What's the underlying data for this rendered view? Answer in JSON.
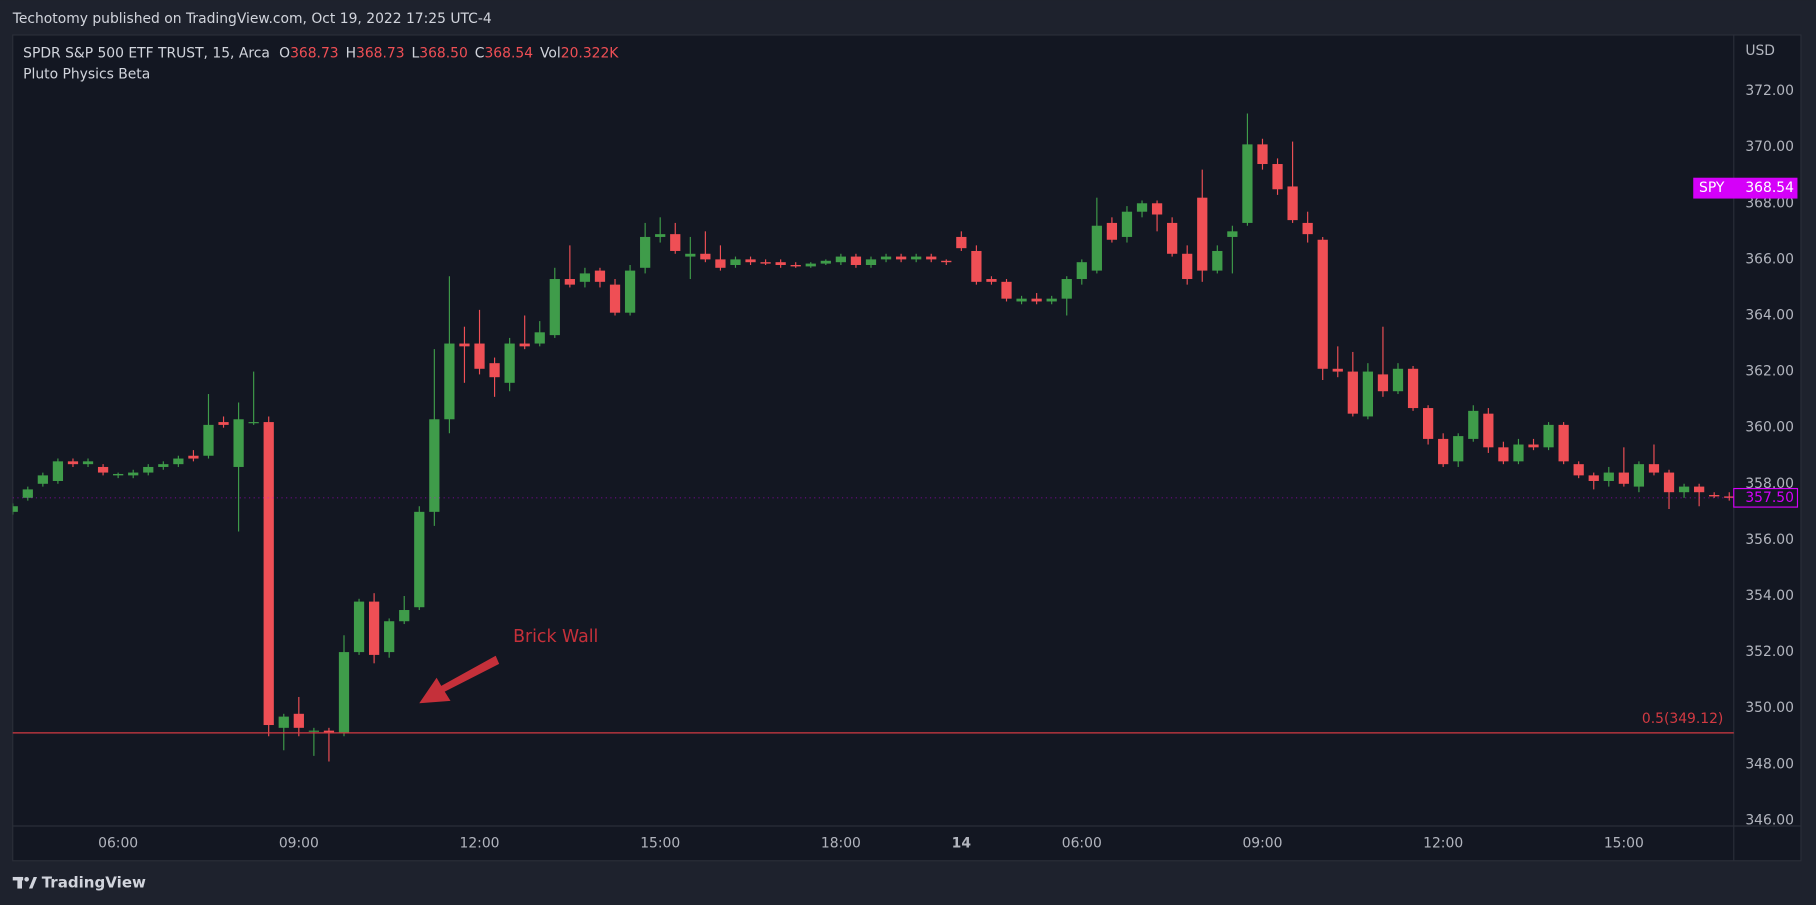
{
  "header": {
    "title": "Techotomy published on TradingView.com, Oct 19, 2022 17:25 UTC-4"
  },
  "footer": {
    "brand": "TradingView"
  },
  "chart_data": {
    "type": "candlestick",
    "symbol": "SPDR S&P 500 ETF TRUST, 15, Arca",
    "legend": [
      {
        "key": "O",
        "value": 368.73
      },
      {
        "key": "H",
        "value": 368.73
      },
      {
        "key": "L",
        "value": 368.5,
        "label": "368.50"
      },
      {
        "key": "C",
        "value": 368.54
      },
      {
        "key": "Vol",
        "value": 20322,
        "label": "20.322K"
      }
    ],
    "indicator": "Pluto Physics Beta",
    "currency": "USD",
    "up_color": "#3f9c4a",
    "down_color": "#ef4f55",
    "xlim": [
      0,
      114.3
    ],
    "xticks": [
      {
        "value": 7,
        "label": "06:00"
      },
      {
        "value": 19,
        "label": "09:00"
      },
      {
        "value": 31,
        "label": "12:00"
      },
      {
        "value": 43,
        "label": "15:00"
      },
      {
        "value": 55,
        "label": "18:00"
      },
      {
        "value": 63,
        "label": "14"
      },
      {
        "value": 71,
        "label": "06:00"
      },
      {
        "value": 83,
        "label": "09:00"
      },
      {
        "value": 95,
        "label": "12:00"
      },
      {
        "value": 107,
        "label": "15:00"
      }
    ],
    "ylim": [
      345.8,
      374.0
    ],
    "yticks": [
      {
        "value": 346,
        "label": "346.00"
      },
      {
        "value": 348,
        "label": "348.00"
      },
      {
        "value": 350,
        "label": "350.00"
      },
      {
        "value": 352,
        "label": "352.00"
      },
      {
        "value": 354,
        "label": "354.00"
      },
      {
        "value": 356,
        "label": "356.00"
      },
      {
        "value": 358,
        "label": "358.00"
      },
      {
        "value": 360,
        "label": "360.00"
      },
      {
        "value": 362,
        "label": "362.00"
      },
      {
        "value": 364,
        "label": "364.00"
      },
      {
        "value": 366,
        "label": "366.00"
      },
      {
        "value": 368,
        "label": "368.00"
      },
      {
        "value": 370,
        "label": "370.00"
      },
      {
        "value": 372,
        "label": "372.00"
      }
    ],
    "open": [
      357.0,
      357.5,
      358.0,
      358.1,
      358.8,
      358.7,
      358.6,
      358.3,
      358.3,
      358.4,
      358.6,
      358.7,
      359.0,
      359.0,
      360.2,
      358.6,
      360.2,
      360.2,
      349.3,
      349.8,
      349.2,
      349.2,
      349.1,
      352.0,
      353.8,
      352.0,
      353.1,
      353.6,
      357.0,
      360.3,
      363.0,
      363.0,
      362.3,
      361.6,
      363.0,
      363.0,
      363.3,
      365.3,
      365.2,
      365.6,
      365.1,
      364.1,
      365.7,
      366.8,
      366.9,
      366.1,
      366.2,
      366.0,
      365.8,
      366.0,
      365.9,
      365.9,
      365.8,
      365.75,
      365.85,
      365.9,
      366.1,
      365.8,
      366.0,
      366.1,
      366.0,
      366.1,
      365.95,
      366.8,
      366.3,
      365.3,
      365.2,
      364.5,
      364.6,
      364.5,
      364.6,
      365.3,
      365.6,
      367.3,
      366.8,
      367.7,
      368.0,
      367.3,
      366.2,
      368.2,
      365.6,
      366.8,
      367.3,
      370.1,
      369.4,
      368.6,
      367.3,
      366.7,
      362.1,
      362.0,
      360.4,
      361.9,
      361.3,
      362.1,
      360.7,
      359.6,
      358.8,
      359.6,
      360.5,
      359.3,
      358.8,
      359.4,
      359.3,
      360.1,
      358.7,
      358.3,
      358.1,
      358.4,
      357.9,
      358.7,
      358.4,
      357.7,
      357.9,
      357.6,
      357.55
    ],
    "high": [
      357.3,
      357.9,
      358.4,
      358.9,
      358.9,
      358.9,
      358.7,
      358.4,
      358.5,
      358.7,
      358.8,
      359.0,
      359.2,
      361.2,
      360.4,
      360.9,
      362.0,
      360.4,
      349.8,
      350.4,
      349.3,
      349.3,
      352.6,
      353.9,
      354.1,
      353.2,
      354.0,
      357.2,
      362.8,
      365.4,
      363.6,
      364.2,
      362.5,
      363.2,
      364.0,
      363.8,
      365.7,
      366.5,
      365.7,
      365.7,
      365.3,
      365.8,
      367.3,
      367.5,
      367.3,
      366.8,
      367.0,
      366.5,
      366.1,
      366.1,
      366.0,
      366.0,
      365.9,
      365.9,
      366.0,
      366.2,
      366.2,
      366.1,
      366.2,
      366.2,
      366.2,
      366.2,
      366.0,
      367.0,
      366.5,
      365.4,
      365.3,
      364.7,
      364.8,
      364.7,
      365.4,
      366.0,
      368.2,
      367.5,
      367.9,
      368.1,
      368.1,
      367.5,
      366.5,
      369.2,
      366.5,
      367.2,
      371.2,
      370.3,
      369.6,
      370.2,
      367.7,
      366.8,
      362.9,
      362.7,
      362.3,
      363.6,
      362.3,
      362.2,
      360.8,
      359.8,
      359.8,
      360.8,
      360.7,
      359.5,
      359.6,
      359.6,
      360.2,
      360.2,
      358.8,
      358.4,
      358.6,
      359.3,
      358.8,
      359.4,
      358.5,
      358.0,
      358.0,
      357.7,
      357.7
    ],
    "low": [
      356.9,
      357.4,
      357.9,
      358.0,
      358.6,
      358.6,
      358.3,
      358.2,
      358.2,
      358.3,
      358.5,
      358.6,
      358.8,
      358.9,
      360.0,
      356.3,
      360.1,
      349.0,
      348.5,
      349.0,
      348.3,
      348.1,
      349.0,
      351.9,
      351.6,
      351.8,
      353.0,
      353.5,
      356.5,
      359.8,
      361.6,
      361.9,
      361.1,
      361.3,
      362.8,
      362.9,
      363.2,
      365.0,
      365.0,
      365.0,
      364.0,
      364.0,
      365.5,
      366.6,
      366.2,
      365.3,
      365.9,
      365.6,
      365.7,
      365.8,
      365.8,
      365.7,
      365.7,
      365.7,
      365.8,
      365.8,
      365.7,
      365.7,
      365.9,
      365.9,
      365.9,
      365.9,
      365.8,
      366.3,
      365.1,
      365.1,
      364.5,
      364.4,
      364.4,
      364.4,
      364.0,
      365.1,
      365.5,
      366.6,
      366.6,
      367.5,
      367.0,
      366.1,
      365.1,
      365.2,
      365.5,
      365.5,
      367.2,
      369.2,
      368.3,
      367.3,
      366.6,
      361.7,
      361.8,
      360.4,
      360.3,
      361.1,
      361.2,
      360.6,
      359.4,
      358.6,
      358.6,
      359.5,
      359.1,
      358.7,
      358.7,
      359.2,
      359.2,
      358.7,
      358.2,
      357.8,
      357.9,
      357.9,
      357.7,
      358.3,
      357.1,
      357.5,
      357.2,
      357.5,
      357.4
    ],
    "close": [
      357.2,
      357.8,
      358.3,
      358.8,
      358.7,
      358.8,
      358.4,
      358.35,
      358.4,
      358.6,
      358.7,
      358.9,
      358.9,
      360.1,
      360.1,
      360.3,
      360.2,
      349.4,
      349.7,
      349.3,
      349.2,
      349.1,
      352.0,
      353.8,
      351.9,
      353.1,
      353.5,
      357.0,
      360.3,
      363.0,
      362.9,
      362.1,
      361.8,
      363.0,
      362.9,
      363.4,
      365.3,
      365.1,
      365.5,
      365.2,
      364.1,
      365.6,
      366.8,
      366.9,
      366.3,
      366.2,
      366.0,
      365.7,
      366.0,
      365.9,
      365.85,
      365.8,
      365.75,
      365.85,
      365.95,
      366.1,
      365.8,
      366.0,
      366.1,
      366.0,
      366.1,
      366.0,
      365.9,
      366.4,
      365.2,
      365.2,
      364.6,
      364.6,
      364.5,
      364.6,
      365.3,
      365.9,
      367.2,
      366.7,
      367.7,
      368.0,
      367.6,
      366.2,
      365.3,
      365.6,
      366.3,
      367.0,
      370.1,
      369.4,
      368.5,
      367.4,
      366.9,
      362.1,
      362.0,
      360.5,
      362.0,
      361.3,
      362.1,
      360.7,
      359.6,
      358.7,
      359.7,
      360.6,
      359.3,
      358.8,
      359.4,
      359.3,
      360.1,
      358.8,
      358.3,
      358.1,
      358.4,
      358.0,
      358.7,
      358.4,
      357.7,
      357.9,
      357.7,
      357.55,
      357.5
    ],
    "level_line": {
      "value": 349.12,
      "label": "0.5(349.12)",
      "color": "#d23a42"
    },
    "price_labels": [
      {
        "name": "SPY",
        "value": 368.54,
        "color": "#d500f9"
      },
      {
        "value": 357.5,
        "label": "357.50",
        "color": "#d500f9"
      }
    ],
    "annotation": {
      "text": "Brick Wall",
      "color": "#c5303a"
    }
  }
}
